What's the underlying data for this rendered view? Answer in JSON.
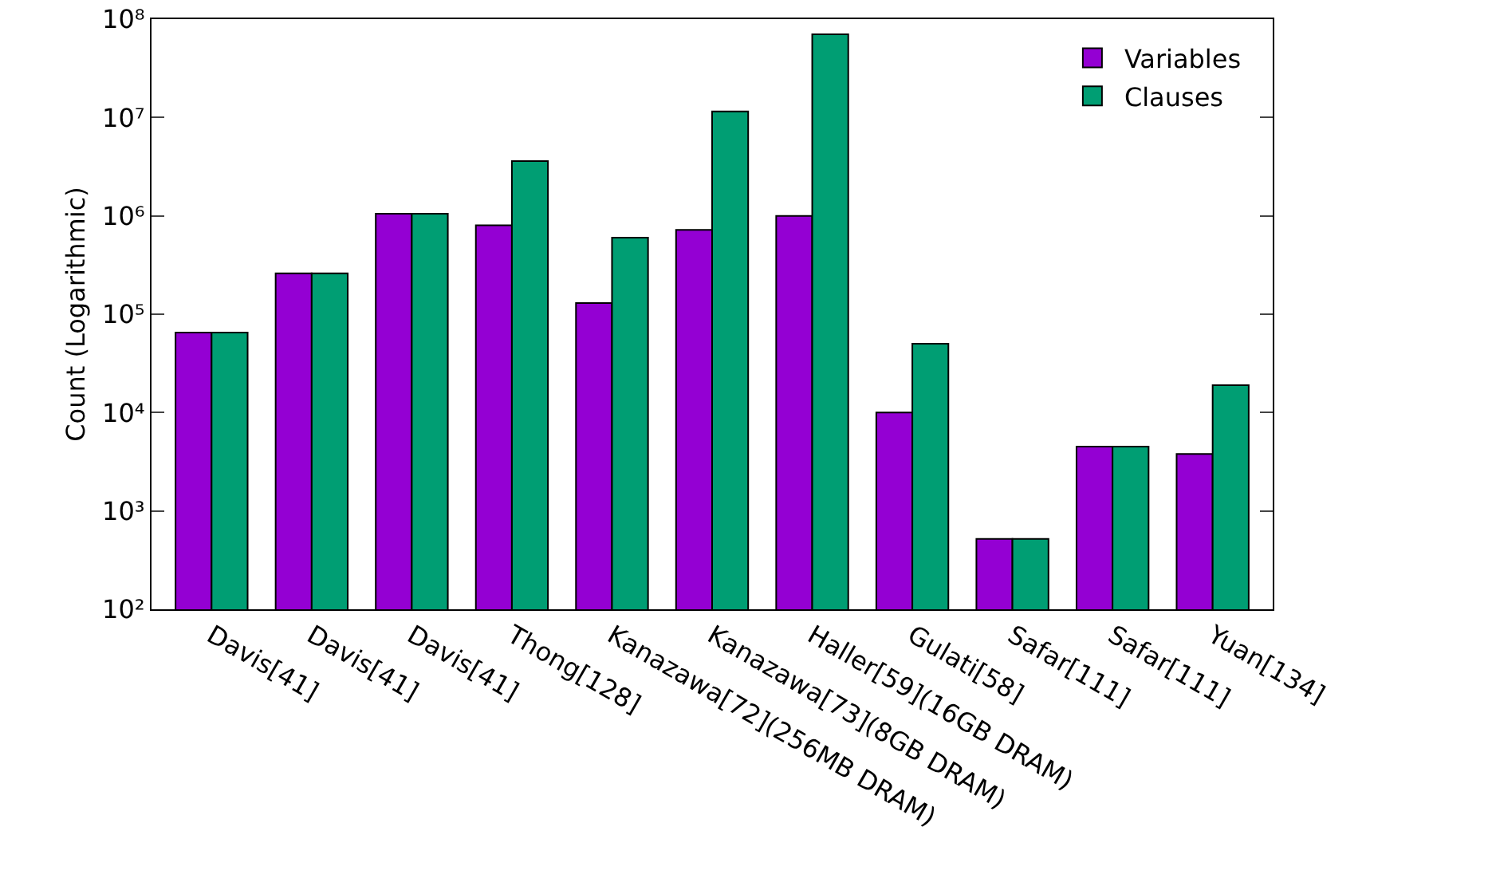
{
  "chart_data": {
    "type": "bar",
    "ylabel": "Count (Logarithmic)",
    "log": true,
    "grid": false,
    "legend": "top right",
    "categories": [
      "Davis[41]",
      "Davis[41]",
      "Davis[41]",
      "Thong[128]",
      "Kanazawa[72](256MB DRAM)",
      "Kanazawa[73](8GB DRAM)",
      "Haller[59](16GB DRAM)",
      "Gulati[58]",
      "Safar[111]",
      "Safar[111]",
      "Yuan[134]"
    ],
    "series": [
      {
        "name": "Variables",
        "color": "#9400d3",
        "values": [
          65000,
          260000,
          1050000,
          800000,
          130000,
          720000,
          1000000,
          10000,
          520,
          4500,
          3800
        ]
      },
      {
        "name": "Clauses",
        "color": "#009e73",
        "values": [
          65000,
          260000,
          1050000,
          3600000,
          600000,
          11500000,
          70000000,
          50000,
          520,
          4500,
          19000
        ]
      }
    ],
    "ylim": [
      100,
      100000000
    ],
    "yticks": [
      {
        "value": 100,
        "label": "10²"
      },
      {
        "value": 1000,
        "label": "10³"
      },
      {
        "value": 10000,
        "label": "10⁴"
      },
      {
        "value": 100000,
        "label": "10⁵"
      },
      {
        "value": 1000000,
        "label": "10⁶"
      },
      {
        "value": 10000000,
        "label": "10⁷"
      },
      {
        "value": 100000000,
        "label": "10⁸"
      }
    ]
  }
}
